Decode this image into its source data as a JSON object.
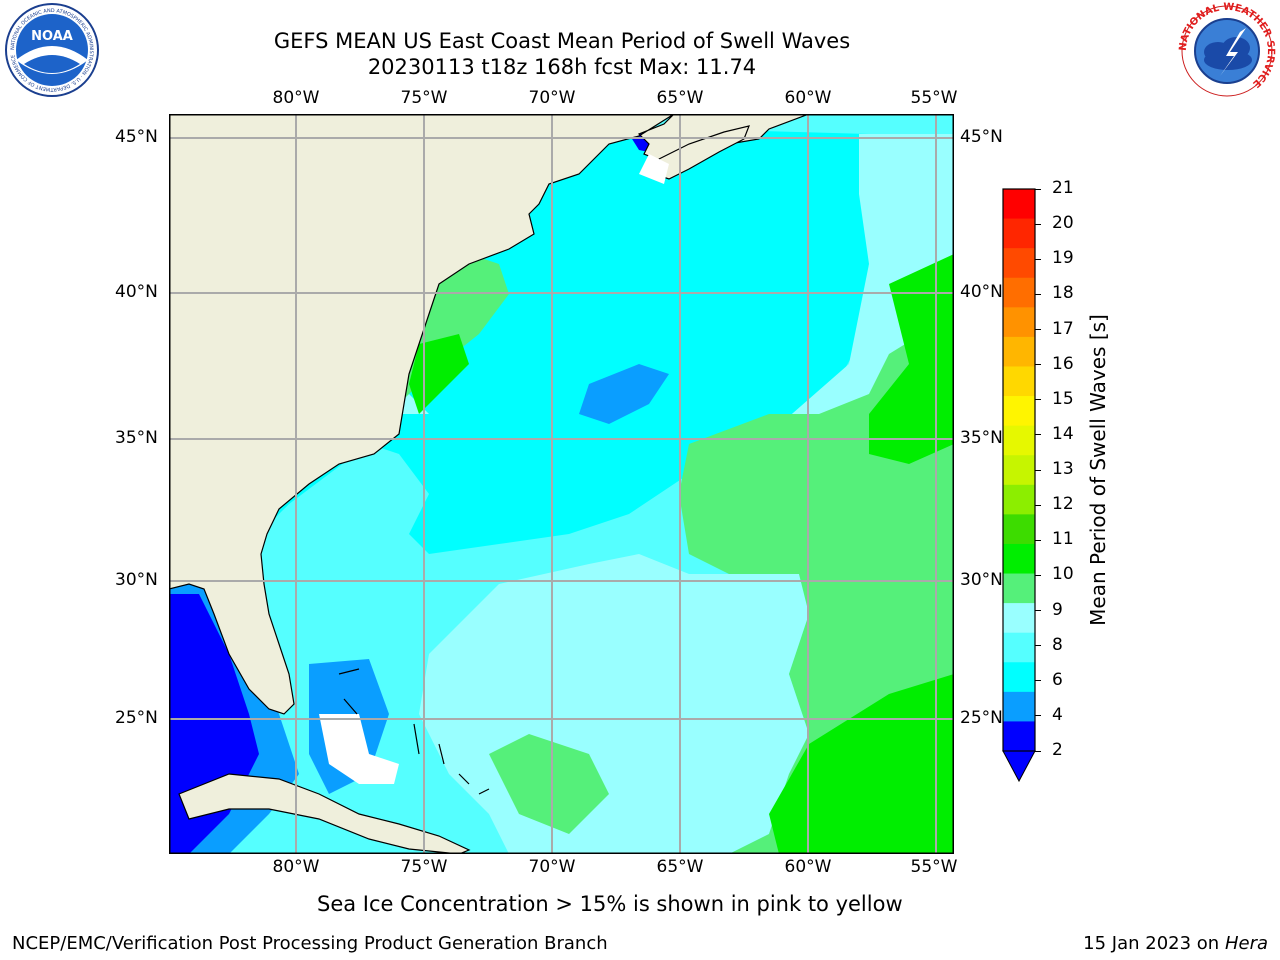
{
  "title": {
    "line1": "GEFS MEAN US East Coast Mean Period of Swell Waves",
    "line2": "20230113 t18z 168h fcst   Max: 11.74"
  },
  "map": {
    "lon_labels": [
      "80°W",
      "75°W",
      "70°W",
      "65°W",
      "60°W",
      "55°W"
    ],
    "lat_labels": [
      "45°N",
      "40°N",
      "35°N",
      "30°N",
      "25°N"
    ],
    "ocean_note": "Sea Ice Concentration > 15% is shown in pink to yellow"
  },
  "colorbar": {
    "label": "Mean Period of Swell Waves [s]",
    "ticks": [
      "21",
      "20",
      "19",
      "18",
      "17",
      "16",
      "15",
      "14",
      "13",
      "12",
      "11",
      "10",
      "9",
      "8",
      "6",
      "4",
      "2"
    ],
    "colors": [
      "#ff0000",
      "#ff2600",
      "#ff4a00",
      "#ff6e00",
      "#ff9200",
      "#ffb600",
      "#ffd800",
      "#fff500",
      "#e6f800",
      "#c6f500",
      "#8cee00",
      "#3ddc00",
      "#00ee00",
      "#55f07a",
      "#99ffff",
      "#55ffff",
      "#00ffff",
      "#0a9eff",
      "#0000ff"
    ]
  },
  "footer": {
    "left": "NCEP/EMC/Verification Post Processing Product Generation Branch",
    "date": "15 Jan 2023 on",
    "machine": "Hera"
  },
  "logos": {
    "noaa": "NOAA",
    "noaa_ring": "NATIONAL OCEANIC AND ATMOSPHERIC ADMINISTRATION · U.S. DEPARTMENT OF COMMERCE",
    "nws_ring": "NATIONAL WEATHER SERVICE"
  }
}
